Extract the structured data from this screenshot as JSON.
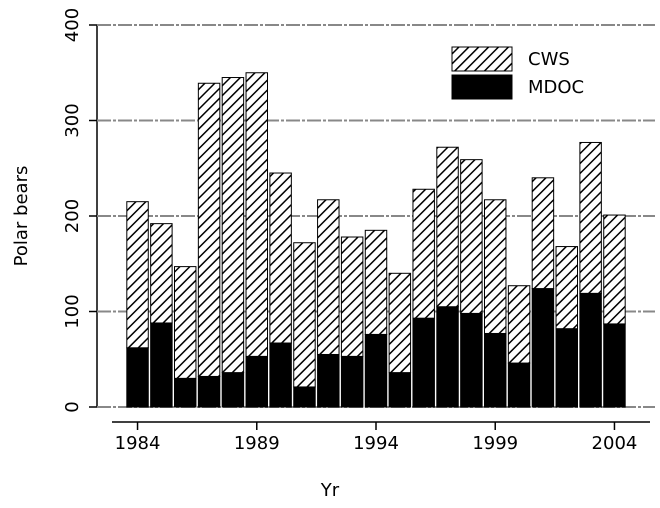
{
  "chart_data": {
    "type": "stacked-bar",
    "x_label": "Yr",
    "y_label": "Polar bears",
    "x": [
      1984,
      1985,
      1986,
      1987,
      1988,
      1989,
      1990,
      1991,
      1992,
      1993,
      1994,
      1995,
      1996,
      1997,
      1998,
      1999,
      2000,
      2001,
      2002,
      2003,
      2004
    ],
    "series": [
      {
        "name": "MDOC",
        "color": "#000000",
        "hatch": false,
        "values": [
          62,
          88,
          30,
          32,
          36,
          53,
          67,
          21,
          55,
          53,
          76,
          36,
          93,
          105,
          98,
          77,
          46,
          124,
          82,
          119,
          87
        ]
      },
      {
        "name": "CWS",
        "color": "#000000",
        "hatch": true,
        "values": [
          153,
          104,
          117,
          307,
          309,
          297,
          178,
          151,
          162,
          125,
          109,
          104,
          135,
          167,
          161,
          140,
          81,
          116,
          86,
          158,
          114
        ]
      }
    ],
    "xlim": [
      1982.3,
      2005.7
    ],
    "xticks": [
      1984,
      1989,
      1994,
      1999,
      2004
    ],
    "ylim": [
      0,
      400
    ],
    "yticks": [
      0,
      100,
      200,
      300,
      400
    ],
    "grid": true,
    "legend": "top-right"
  }
}
